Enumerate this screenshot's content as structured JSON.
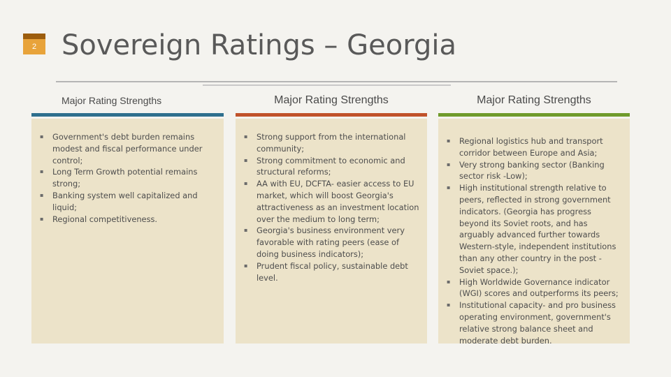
{
  "slide_number": "2",
  "title": "Sovereign Ratings – Georgia",
  "columns": [
    {
      "header": "Major Rating Strengths",
      "items": [
        "Government's debt burden remains modest and fiscal performance under control;",
        "Long Term Growth potential remains strong;",
        "Banking system well capitalized and liquid;",
        "Regional competitiveness."
      ]
    },
    {
      "header": "Major Rating Strengths",
      "items": [
        "Strong support from the international community;",
        "Strong commitment to economic and structural reforms;",
        "AA with EU, DCFTA- easier access to EU market, which will boost Georgia's attractiveness as an investment location over the medium to long term;",
        "Georgia's business environment very favorable with rating peers (ease of doing business indicators);",
        "Prudent fiscal policy, sustainable debt level."
      ]
    },
    {
      "header": "Major Rating Strengths",
      "items": [
        "Regional logistics hub and transport corridor between Europe and Asia;",
        "Very strong banking sector (Banking sector risk -Low);",
        "High institutional strength relative to peers, reflected in strong government indicators. (Georgia has progress beyond its Soviet roots, and has arguably advanced further towards Western-style, independent institutions than any other country in the post -Soviet space.);",
        "High Worldwide Governance indicator (WGI) scores and outperforms its peers;",
        "Institutional capacity- and pro business operating environment, government's relative strong balance sheet and moderate debt burden."
      ]
    }
  ],
  "colors": {
    "accent_1": "#2e6f8e",
    "accent_2": "#c0522a",
    "accent_3": "#6f9a2b",
    "panel": "#ece3c9",
    "slide_number_badge": "#e8a33a"
  }
}
